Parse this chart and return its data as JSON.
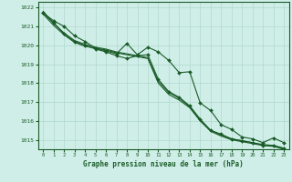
{
  "background_color": "#d0eee8",
  "grid_color": "#b0d8cc",
  "line_color": "#1a5c28",
  "xlabel": "Graphe pression niveau de la mer (hPa)",
  "ylim": [
    1014.5,
    1022.3
  ],
  "xlim": [
    -0.5,
    23.5
  ],
  "yticks": [
    1015,
    1016,
    1017,
    1018,
    1019,
    1020,
    1021,
    1022
  ],
  "xticks": [
    0,
    1,
    2,
    3,
    4,
    5,
    6,
    7,
    8,
    9,
    10,
    11,
    12,
    13,
    14,
    15,
    16,
    17,
    18,
    19,
    20,
    21,
    22,
    23
  ],
  "series": [
    [
      1021.7,
      1021.3,
      1021.0,
      1020.5,
      1020.2,
      1019.85,
      1019.7,
      1019.55,
      1020.1,
      1019.5,
      1019.9,
      1019.65,
      1019.2,
      1018.55,
      1018.6,
      1016.95,
      1016.55,
      1015.8,
      1015.55,
      1015.15,
      1015.05,
      1014.85,
      1015.1,
      1014.85
    ],
    [
      1021.7,
      1021.2,
      1020.6,
      1020.2,
      1020.0,
      1019.8,
      1019.65,
      1019.45,
      1019.3,
      1019.45,
      1019.5,
      1018.2,
      1017.55,
      1017.25,
      1016.8,
      1016.1,
      1015.5,
      1015.3,
      1015.05,
      1014.95,
      1014.85,
      1014.7,
      1014.7,
      1014.55
    ],
    [
      1021.65,
      1021.05,
      1020.55,
      1020.15,
      1019.95,
      1019.85,
      1019.75,
      1019.6,
      1019.5,
      1019.4,
      1019.3,
      1018.0,
      1017.4,
      1017.1,
      1016.7,
      1016.0,
      1015.45,
      1015.2,
      1015.0,
      1014.9,
      1014.8,
      1014.7,
      1014.65,
      1014.5
    ],
    [
      1021.8,
      1021.15,
      1020.65,
      1020.25,
      1020.05,
      1019.9,
      1019.8,
      1019.65,
      1019.55,
      1019.45,
      1019.35,
      1018.1,
      1017.5,
      1017.2,
      1016.75,
      1016.05,
      1015.5,
      1015.25,
      1015.05,
      1014.95,
      1014.85,
      1014.75,
      1014.7,
      1014.55
    ]
  ],
  "marker_series": [
    0,
    1
  ],
  "marker": "D",
  "marker_size": 2.0,
  "linewidth": 0.8
}
